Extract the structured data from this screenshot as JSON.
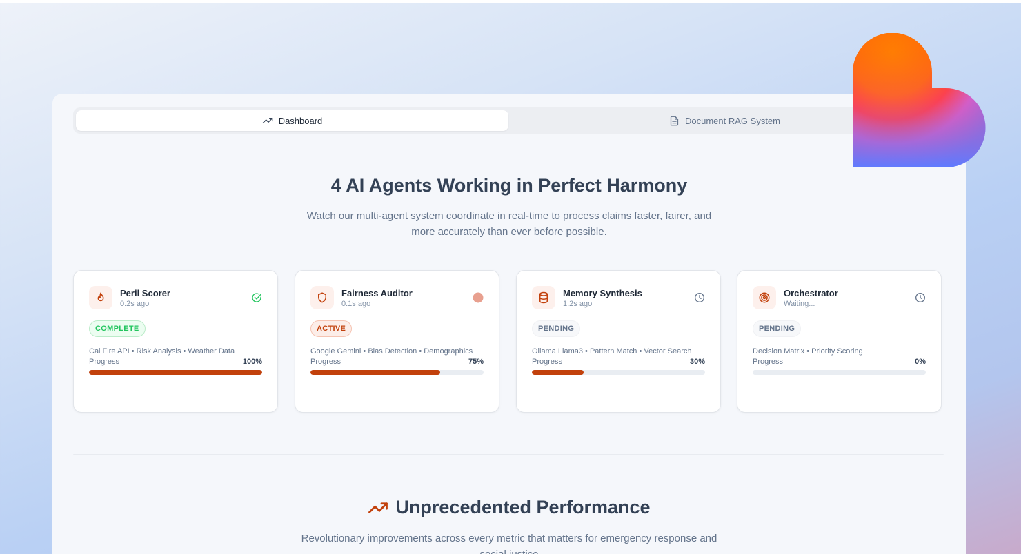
{
  "tabs": [
    {
      "label": "Dashboard",
      "icon": "trending-up-icon",
      "active": true
    },
    {
      "label": "Document RAG System",
      "icon": "file-text-icon",
      "active": false
    }
  ],
  "hero": {
    "title": "4 AI Agents Working in Perfect Harmony",
    "subtitle": "Watch our multi-agent system coordinate in real-time to process claims faster, fairer, and more accurately than ever before possible."
  },
  "agents": [
    {
      "name": "Peril Scorer",
      "time": "0.2s ago",
      "icon": "flame-icon",
      "status_icon": "check-circle-icon",
      "badge": "COMPLETE",
      "tags": "Cal Fire API • Risk Analysis • Weather Data",
      "progress_label": "Progress",
      "progress": 100,
      "progress_text": "100%"
    },
    {
      "name": "Fairness Auditor",
      "time": "0.1s ago",
      "icon": "shield-icon",
      "status_icon": "active-dot-icon",
      "badge": "ACTIVE",
      "tags": "Google Gemini • Bias Detection • Demographics",
      "progress_label": "Progress",
      "progress": 75,
      "progress_text": "75%"
    },
    {
      "name": "Memory Synthesis",
      "time": "1.2s ago",
      "icon": "database-icon",
      "status_icon": "clock-icon",
      "badge": "PENDING",
      "tags": "Ollama Llama3 • Pattern Match • Vector Search",
      "progress_label": "Progress",
      "progress": 30,
      "progress_text": "30%"
    },
    {
      "name": "Orchestrator",
      "time": "Waiting...",
      "icon": "target-icon",
      "status_icon": "clock-icon",
      "badge": "PENDING",
      "tags": "Decision Matrix • Priority Scoring",
      "progress_label": "Progress",
      "progress": 0,
      "progress_text": "0%"
    }
  ],
  "performance": {
    "title": "Unprecedented Performance",
    "subtitle": "Revolutionary improvements across every metric that matters for emergency response and social justice"
  },
  "colors": {
    "accent": "#c2410c",
    "complete": "#22c55e",
    "active_dot": "#e8a08f"
  }
}
